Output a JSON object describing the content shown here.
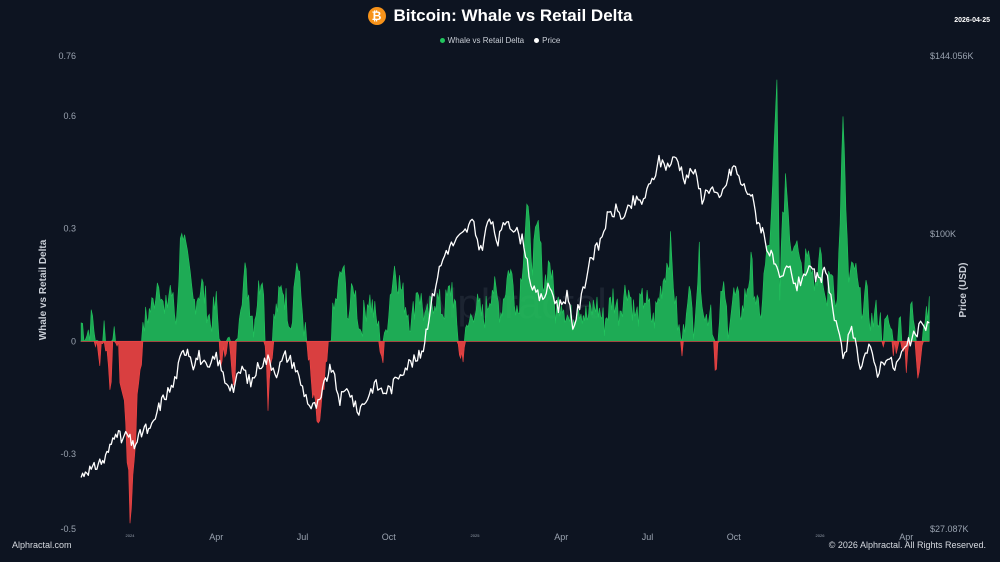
{
  "header": {
    "title": "Bitcoin: Whale vs Retail Delta",
    "date": "2026-04-25",
    "logo_glyph": "₿"
  },
  "legend": [
    {
      "label": "Whale vs Retail Delta",
      "color": "#22c55e"
    },
    {
      "label": "Price",
      "color": "#ffffff"
    }
  ],
  "footer": {
    "left": "Alphractal.com",
    "right": "© 2026 Alphractal. All Rights Reserved."
  },
  "watermark": "Alphractal",
  "colors": {
    "background": "#0d1421",
    "positive": "#22c55e",
    "negative": "#ef4444",
    "price": "#ffffff",
    "btc": "#f7931a"
  },
  "chart_data": {
    "type": "line",
    "title": "Bitcoin: Whale vs Retail Delta",
    "ylabel": "Whale vs Retail Delta",
    "y2label": "Price (USD)",
    "ylim": [
      -0.5,
      0.76
    ],
    "y2lim": [
      27087,
      144056
    ],
    "y_ticks": [
      {
        "value": 0.76,
        "label": "0.76"
      },
      {
        "value": 0.6,
        "label": "0.6"
      },
      {
        "value": 0.3,
        "label": "0.3"
      },
      {
        "value": 0,
        "label": "0"
      },
      {
        "value": -0.3,
        "label": "-0.3"
      },
      {
        "value": -0.5,
        "label": "-0.5"
      }
    ],
    "y2_ticks": [
      {
        "value": 144056,
        "label": "$144.056K"
      },
      {
        "value": 100000,
        "label": "$100K"
      },
      {
        "value": 27087,
        "label": "$27.087K"
      }
    ],
    "x_ticks": [
      {
        "month": 0,
        "label": "2024",
        "small": true
      },
      {
        "month": 3,
        "label": "Apr",
        "small": false
      },
      {
        "month": 6,
        "label": "Jul",
        "small": false
      },
      {
        "month": 9,
        "label": "Oct",
        "small": false
      },
      {
        "month": 12,
        "label": "2025",
        "small": true
      },
      {
        "month": 15,
        "label": "Apr",
        "small": false
      },
      {
        "month": 18,
        "label": "Jul",
        "small": false
      },
      {
        "month": 21,
        "label": "Oct",
        "small": false
      },
      {
        "month": 24,
        "label": "2026",
        "small": true
      },
      {
        "month": 27,
        "label": "Apr",
        "small": false
      }
    ],
    "xlim_months": [
      -1.7,
      28.0
    ],
    "delta_series": {
      "name": "Whale vs Retail Delta",
      "points": [
        [
          -1.7,
          0.05
        ],
        [
          -1.5,
          0.02
        ],
        [
          -1.3,
          0.06
        ],
        [
          -1.1,
          -0.05
        ],
        [
          -0.9,
          0.04
        ],
        [
          -0.7,
          -0.1
        ],
        [
          -0.5,
          0.03
        ],
        [
          -0.3,
          -0.12
        ],
        [
          -0.15,
          -0.2
        ],
        [
          0.0,
          -0.48
        ],
        [
          0.15,
          -0.3
        ],
        [
          0.3,
          -0.1
        ],
        [
          0.5,
          0.05
        ],
        [
          0.8,
          0.1
        ],
        [
          1.0,
          0.18
        ],
        [
          1.2,
          0.06
        ],
        [
          1.4,
          0.15
        ],
        [
          1.6,
          0.05
        ],
        [
          1.8,
          0.32
        ],
        [
          2.0,
          0.2
        ],
        [
          2.2,
          0.1
        ],
        [
          2.5,
          0.15
        ],
        [
          2.8,
          0.05
        ],
        [
          3.0,
          0.1
        ],
        [
          3.2,
          -0.08
        ],
        [
          3.4,
          0.04
        ],
        [
          3.6,
          -0.15
        ],
        [
          3.8,
          0.1
        ],
        [
          4.0,
          0.18
        ],
        [
          4.3,
          0.05
        ],
        [
          4.6,
          0.2
        ],
        [
          4.8,
          -0.15
        ],
        [
          5.0,
          0.05
        ],
        [
          5.3,
          0.15
        ],
        [
          5.6,
          0.05
        ],
        [
          5.8,
          0.22
        ],
        [
          6.0,
          0.08
        ],
        [
          6.2,
          -0.05
        ],
        [
          6.4,
          -0.18
        ],
        [
          6.6,
          -0.23
        ],
        [
          6.8,
          -0.1
        ],
        [
          7.0,
          0.04
        ],
        [
          7.2,
          0.12
        ],
        [
          7.4,
          0.2
        ],
        [
          7.6,
          0.07
        ],
        [
          7.8,
          0.15
        ],
        [
          8.0,
          0.03
        ],
        [
          8.3,
          0.12
        ],
        [
          8.6,
          0.05
        ],
        [
          8.8,
          -0.05
        ],
        [
          9.0,
          0.1
        ],
        [
          9.2,
          0.2
        ],
        [
          9.5,
          0.12
        ],
        [
          9.8,
          0.05
        ],
        [
          10.0,
          0.15
        ],
        [
          10.3,
          0.05
        ],
        [
          10.6,
          0.12
        ],
        [
          10.9,
          0.08
        ],
        [
          11.2,
          0.15
        ],
        [
          11.5,
          -0.05
        ],
        [
          11.8,
          0.05
        ],
        [
          12.0,
          0.1
        ],
        [
          12.3,
          0.06
        ],
        [
          12.6,
          0.15
        ],
        [
          12.9,
          0.08
        ],
        [
          13.2,
          0.2
        ],
        [
          13.5,
          0.08
        ],
        [
          13.8,
          0.35
        ],
        [
          14.0,
          0.22
        ],
        [
          14.2,
          0.3
        ],
        [
          14.4,
          0.15
        ],
        [
          14.6,
          0.22
        ],
        [
          14.8,
          0.08
        ],
        [
          15.0,
          0.12
        ],
        [
          15.3,
          0.05
        ],
        [
          15.6,
          0.1
        ],
        [
          15.9,
          0.06
        ],
        [
          16.2,
          0.1
        ],
        [
          16.5,
          0.05
        ],
        [
          16.8,
          0.12
        ],
        [
          17.0,
          0.08
        ],
        [
          17.3,
          0.15
        ],
        [
          17.6,
          0.06
        ],
        [
          17.9,
          0.12
        ],
        [
          18.2,
          0.05
        ],
        [
          18.5,
          0.15
        ],
        [
          18.8,
          0.25
        ],
        [
          19.0,
          0.08
        ],
        [
          19.2,
          -0.03
        ],
        [
          19.4,
          0.15
        ],
        [
          19.6,
          0.05
        ],
        [
          19.8,
          0.22
        ],
        [
          20.0,
          0.05
        ],
        [
          20.2,
          0.1
        ],
        [
          20.4,
          -0.08
        ],
        [
          20.6,
          0.15
        ],
        [
          20.8,
          0.05
        ],
        [
          21.0,
          0.12
        ],
        [
          21.3,
          0.08
        ],
        [
          21.6,
          0.2
        ],
        [
          21.9,
          0.05
        ],
        [
          22.1,
          0.2
        ],
        [
          22.3,
          0.3
        ],
        [
          22.5,
          0.68
        ],
        [
          22.6,
          0.15
        ],
        [
          22.8,
          0.45
        ],
        [
          23.0,
          0.25
        ],
        [
          23.2,
          0.3
        ],
        [
          23.4,
          0.18
        ],
        [
          23.6,
          0.28
        ],
        [
          23.8,
          0.15
        ],
        [
          24.0,
          0.22
        ],
        [
          24.2,
          0.1
        ],
        [
          24.4,
          0.2
        ],
        [
          24.6,
          0.1
        ],
        [
          24.8,
          0.58
        ],
        [
          25.0,
          0.15
        ],
        [
          25.2,
          0.2
        ],
        [
          25.4,
          0.1
        ],
        [
          25.6,
          0.12
        ],
        [
          25.8,
          0.05
        ],
        [
          26.0,
          0.08
        ],
        [
          26.2,
          0.02
        ],
        [
          26.4,
          0.05
        ],
        [
          26.6,
          -0.02
        ],
        [
          26.8,
          0.05
        ],
        [
          27.0,
          -0.05
        ],
        [
          27.2,
          0.1
        ],
        [
          27.4,
          -0.08
        ],
        [
          27.6,
          0.05
        ],
        [
          27.8,
          0.12
        ]
      ]
    },
    "price_series": {
      "name": "Price",
      "points": [
        [
          -1.7,
          40000
        ],
        [
          -1.5,
          42000
        ],
        [
          -1.3,
          41500
        ],
        [
          -1.1,
          43500
        ],
        [
          -0.9,
          44000
        ],
        [
          -0.7,
          47000
        ],
        [
          -0.5,
          52000
        ],
        [
          -0.3,
          49000
        ],
        [
          -0.1,
          50500
        ],
        [
          0.1,
          47500
        ],
        [
          0.3,
          49500
        ],
        [
          0.5,
          52000
        ],
        [
          0.7,
          51000
        ],
        [
          1.0,
          57000
        ],
        [
          1.2,
          60000
        ],
        [
          1.5,
          62500
        ],
        [
          1.8,
          70000
        ],
        [
          2.0,
          72000
        ],
        [
          2.2,
          68000
        ],
        [
          2.4,
          70000
        ],
        [
          2.7,
          66000
        ],
        [
          3.0,
          70000
        ],
        [
          3.3,
          64000
        ],
        [
          3.6,
          62000
        ],
        [
          3.9,
          67000
        ],
        [
          4.2,
          63000
        ],
        [
          4.5,
          68000
        ],
        [
          4.8,
          69000
        ],
        [
          5.1,
          66000
        ],
        [
          5.4,
          70000
        ],
        [
          5.7,
          68000
        ],
        [
          6.0,
          62000
        ],
        [
          6.3,
          57000
        ],
        [
          6.6,
          58000
        ],
        [
          6.8,
          64000
        ],
        [
          7.0,
          67000
        ],
        [
          7.3,
          59000
        ],
        [
          7.6,
          62000
        ],
        [
          7.9,
          56000
        ],
        [
          8.2,
          59000
        ],
        [
          8.5,
          63000
        ],
        [
          8.8,
          61000
        ],
        [
          9.1,
          62000
        ],
        [
          9.4,
          66000
        ],
        [
          9.7,
          68000
        ],
        [
          10.0,
          69000
        ],
        [
          10.2,
          72000
        ],
        [
          10.4,
          80000
        ],
        [
          10.7,
          90000
        ],
        [
          11.0,
          96000
        ],
        [
          11.3,
          98000
        ],
        [
          11.6,
          100000
        ],
        [
          11.9,
          103000
        ],
        [
          12.2,
          96000
        ],
        [
          12.5,
          104000
        ],
        [
          12.8,
          98000
        ],
        [
          13.1,
          104000
        ],
        [
          13.4,
          101000
        ],
        [
          13.7,
          98000
        ],
        [
          14.0,
          86000
        ],
        [
          14.3,
          84000
        ],
        [
          14.6,
          87000
        ],
        [
          14.9,
          82000
        ],
        [
          15.2,
          85000
        ],
        [
          15.4,
          77000
        ],
        [
          15.7,
          84000
        ],
        [
          16.0,
          94000
        ],
        [
          16.3,
          97000
        ],
        [
          16.6,
          104000
        ],
        [
          16.9,
          106000
        ],
        [
          17.2,
          104000
        ],
        [
          17.5,
          108000
        ],
        [
          17.8,
          108000
        ],
        [
          18.1,
          112000
        ],
        [
          18.4,
          118000
        ],
        [
          18.7,
          117000
        ],
        [
          19.0,
          119000
        ],
        [
          19.3,
          114000
        ],
        [
          19.6,
          116000
        ],
        [
          19.9,
          109000
        ],
        [
          20.2,
          112000
        ],
        [
          20.5,
          108000
        ],
        [
          20.8,
          114000
        ],
        [
          21.0,
          117000
        ],
        [
          21.3,
          112000
        ],
        [
          21.6,
          110000
        ],
        [
          21.8,
          104000
        ],
        [
          22.0,
          101000
        ],
        [
          22.2,
          96000
        ],
        [
          22.4,
          93000
        ],
        [
          22.6,
          88000
        ],
        [
          22.9,
          92000
        ],
        [
          23.2,
          87000
        ],
        [
          23.5,
          91000
        ],
        [
          23.8,
          90000
        ],
        [
          24.0,
          88000
        ],
        [
          24.2,
          92000
        ],
        [
          24.5,
          79000
        ],
        [
          24.8,
          70000
        ],
        [
          25.1,
          76000
        ],
        [
          25.4,
          68000
        ],
        [
          25.7,
          72000
        ],
        [
          26.0,
          66000
        ],
        [
          26.3,
          70000
        ],
        [
          26.6,
          67000
        ],
        [
          26.9,
          71000
        ],
        [
          27.2,
          74000
        ],
        [
          27.5,
          77000
        ],
        [
          27.8,
          78000
        ]
      ]
    }
  }
}
